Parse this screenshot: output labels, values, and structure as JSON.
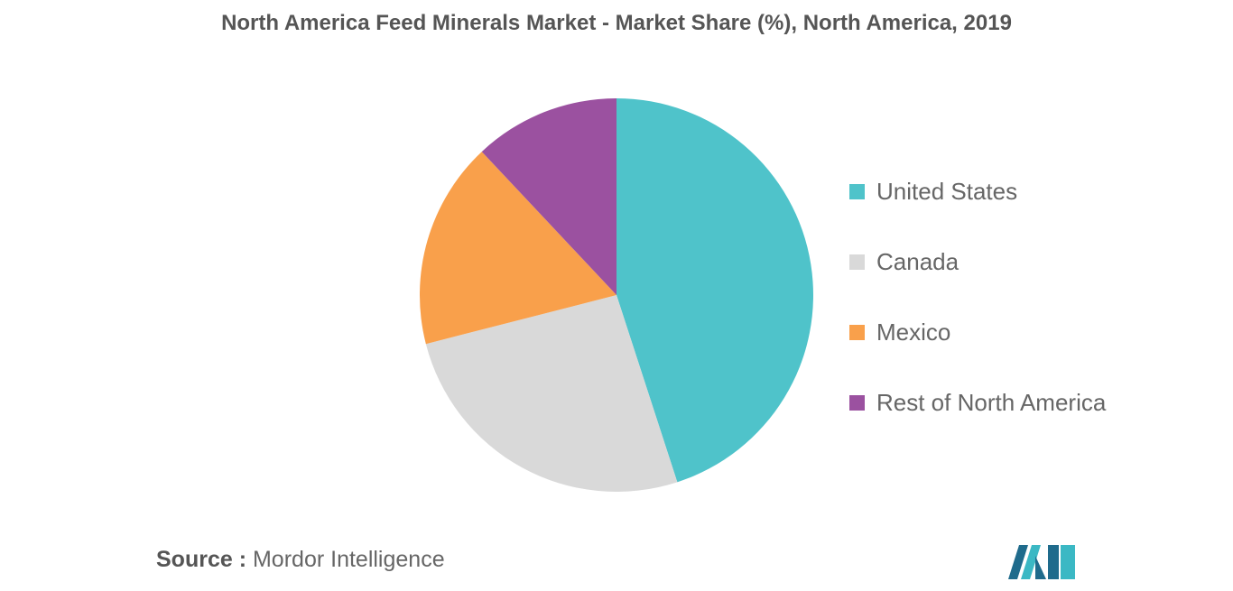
{
  "chart_data": {
    "type": "pie",
    "title": "North America Feed Minerals Market - Market Share (%), North America, 2019",
    "categories": [
      "United States",
      "Canada",
      "Mexico",
      "Rest of North America"
    ],
    "values": [
      45,
      26,
      17,
      12
    ],
    "colors": [
      "#4fc3ca",
      "#d9d9d9",
      "#f9a04b",
      "#9b51a0"
    ],
    "legend_position": "right"
  },
  "footer": {
    "source_label": "Source :",
    "source_text": "Mordor Intelligence",
    "logo_icon": "mordor-intelligence-logo-icon",
    "logo_colors": [
      "#1f6b8c",
      "#3bb8c4"
    ]
  }
}
